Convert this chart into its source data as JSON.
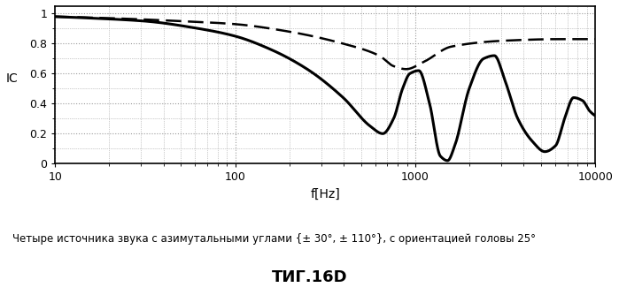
{
  "title": "",
  "xlabel": "f[Hz]",
  "ylabel": "IC",
  "xlim": [
    10,
    10000
  ],
  "ylim": [
    0,
    1.05
  ],
  "yticks": [
    0,
    0.2,
    0.4,
    0.6,
    0.8,
    1
  ],
  "background_color": "#ffffff",
  "caption": "Четыре источника звука с азимутальными углами {± 30°, ± 110°}, с ориентацией головы 25°",
  "fig_title": "ΤИГ.16D",
  "solid_line_color": "#000000",
  "dashed_line_color": "#000000",
  "grid_color": "#999999",
  "fig_width": 6.99,
  "fig_height": 3.34,
  "dpi": 100,
  "solid_pts_lf": [
    1.0,
    1.2,
    1.5,
    1.8,
    2.0,
    2.2,
    2.4,
    2.6,
    2.75,
    2.82,
    2.88,
    2.93,
    2.97,
    3.02,
    3.08,
    3.14,
    3.18,
    3.22,
    3.3,
    3.38,
    3.44,
    3.5,
    3.57,
    3.65,
    3.72,
    3.78,
    3.83,
    3.88,
    3.93,
    3.97,
    4.0
  ],
  "solid_pts_v": [
    0.98,
    0.97,
    0.95,
    0.9,
    0.85,
    0.76,
    0.63,
    0.44,
    0.25,
    0.2,
    0.3,
    0.5,
    0.6,
    0.62,
    0.4,
    0.05,
    0.02,
    0.12,
    0.5,
    0.7,
    0.72,
    0.55,
    0.3,
    0.15,
    0.08,
    0.12,
    0.3,
    0.44,
    0.42,
    0.35,
    0.32
  ],
  "dashed_pts_lf": [
    1.0,
    1.3,
    1.7,
    2.0,
    2.3,
    2.6,
    2.8,
    2.88,
    2.95,
    3.05,
    3.2,
    3.5,
    3.8,
    4.0
  ],
  "dashed_pts_v": [
    0.98,
    0.97,
    0.95,
    0.93,
    0.88,
    0.8,
    0.72,
    0.65,
    0.63,
    0.68,
    0.78,
    0.82,
    0.83,
    0.83
  ]
}
